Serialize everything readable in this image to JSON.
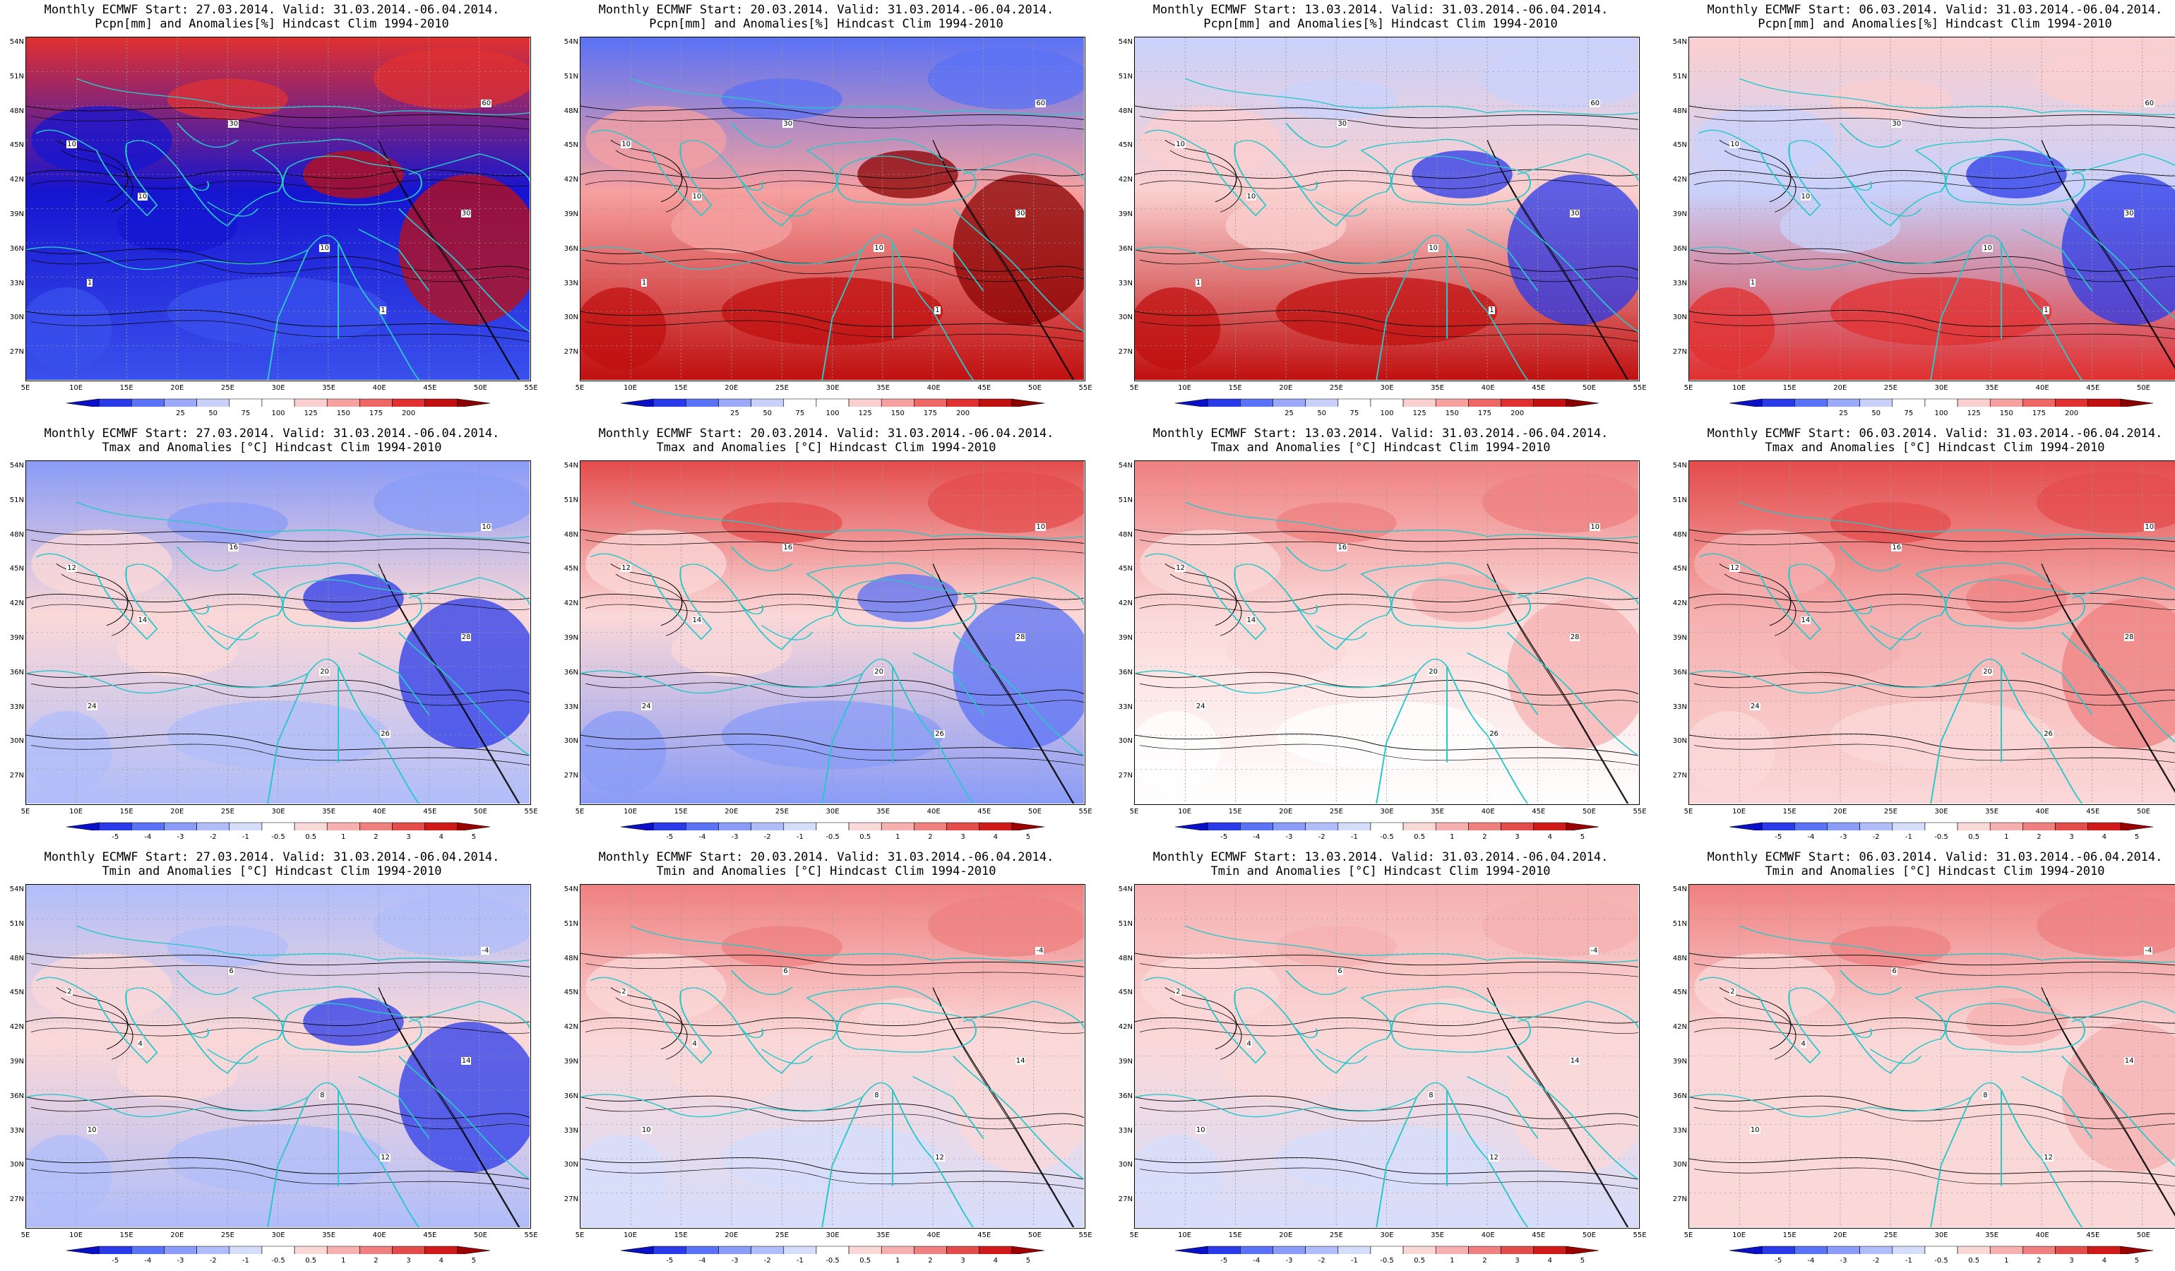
{
  "lat_labels": [
    "54N",
    "51N",
    "48N",
    "45N",
    "42N",
    "39N",
    "36N",
    "33N",
    "30N",
    "27N"
  ],
  "lon_labels": [
    "5E",
    "10E",
    "15E",
    "20E",
    "25E",
    "30E",
    "35E",
    "40E",
    "45E",
    "50E",
    "55E"
  ],
  "rows": [
    {
      "row_id": "precip",
      "title_line2": "Pcpn[mm] and Anomalies[%] Hindcast Clim 1994-2010",
      "colorbar_ticks": [
        "25",
        "50",
        "75",
        "100",
        "125",
        "150",
        "175",
        "200"
      ],
      "colorbar_colors": [
        "#0a10c8",
        "#2a3ae8",
        "#5a72f5",
        "#9aa9f8",
        "#c9d1fb",
        "#ffffff",
        "#ffffff",
        "#fbcfcf",
        "#f6a0a0",
        "#ee6666",
        "#e03030",
        "#c01010",
        "#8a0000"
      ],
      "contour_labels": [
        "10",
        "10",
        "30",
        "10",
        "1",
        "1",
        "30",
        "60"
      ]
    },
    {
      "row_id": "tmax",
      "title_line2": "Tmax and Anomalies [°C] Hindcast Clim 1994-2010",
      "colorbar_ticks": [
        "-5",
        "-4",
        "-3",
        "-2",
        "-1",
        "-0.5",
        "0.5",
        "1",
        "2",
        "3",
        "4",
        "5"
      ],
      "colorbar_colors": [
        "#0a10c8",
        "#2a3ae8",
        "#5a72f5",
        "#8a9cf7",
        "#b0bdf9",
        "#d6ddfb",
        "#ffffff",
        "#fbd8d8",
        "#f6b0b0",
        "#ef8080",
        "#e44c4c",
        "#d01a1a",
        "#9a0000"
      ],
      "contour_labels": [
        "12",
        "14",
        "16",
        "20",
        "24",
        "26",
        "28",
        "10"
      ]
    },
    {
      "row_id": "tmin",
      "title_line2": "Tmin and Anomalies [°C] Hindcast Clim 1994-2010",
      "colorbar_ticks": [
        "-5",
        "-4",
        "-3",
        "-2",
        "-1",
        "-0.5",
        "0.5",
        "1",
        "2",
        "3",
        "4",
        "5"
      ],
      "colorbar_colors": [
        "#0a10c8",
        "#2a3ae8",
        "#5a72f5",
        "#8a9cf7",
        "#b0bdf9",
        "#d6ddfb",
        "#ffffff",
        "#fbd8d8",
        "#f6b0b0",
        "#ef8080",
        "#e44c4c",
        "#d01a1a",
        "#9a0000"
      ],
      "contour_labels": [
        "2",
        "4",
        "6",
        "8",
        "10",
        "12",
        "14",
        "-4"
      ]
    }
  ],
  "columns": [
    {
      "title_line1": "Monthly ECMWF Start: 27.03.2014. Valid: 31.03.2014.-06.04.2014.",
      "start": "27.03.2014"
    },
    {
      "title_line1": "Monthly ECMWF Start: 20.03.2014. Valid: 31.03.2014.-06.04.2014.",
      "start": "20.03.2014"
    },
    {
      "title_line1": "Monthly ECMWF Start: 13.03.2014. Valid: 31.03.2014.-06.04.2014.",
      "start": "13.03.2014"
    },
    {
      "title_line1": "Monthly ECMWF Start: 06.03.2014. Valid: 31.03.2014.-06.04.2014.",
      "start": "06.03.2014"
    }
  ],
  "anomaly_fields": {
    "precip": [
      {
        "north": "#e03030",
        "center": "#1515d0",
        "south": "#3a50ec",
        "east": "#c01010"
      },
      {
        "north": "#5a72f5",
        "center": "#f6a0a0",
        "south": "#c01010",
        "east": "#8a0000"
      },
      {
        "north": "#c9d1fb",
        "center": "#fbcfcf",
        "south": "#c01010",
        "east": "#2a3ae8"
      },
      {
        "north": "#fbcfcf",
        "center": "#c9d1fb",
        "south": "#e03030",
        "east": "#2a3ae8"
      }
    ],
    "tmax": [
      {
        "north": "#8a9cf7",
        "center": "#fbd8d8",
        "south": "#b0bdf9",
        "east": "#2a3ae8"
      },
      {
        "north": "#e44c4c",
        "center": "#fbd8d8",
        "south": "#8a9cf7",
        "east": "#5a72f5"
      },
      {
        "north": "#ef8080",
        "center": "#fbd8d8",
        "south": "#ffffff",
        "east": "#f6b0b0"
      },
      {
        "north": "#e44c4c",
        "center": "#f6b0b0",
        "south": "#fbd8d8",
        "east": "#ef8080"
      }
    ],
    "tmin": [
      {
        "north": "#b0bdf9",
        "center": "#fbd8d8",
        "south": "#b0bdf9",
        "east": "#2a3ae8"
      },
      {
        "north": "#ef8080",
        "center": "#fbd8d8",
        "south": "#d6ddfb",
        "east": "#fbd8d8"
      },
      {
        "north": "#f6b0b0",
        "center": "#fbd8d8",
        "south": "#d6ddfb",
        "east": "#fbd8d8"
      },
      {
        "north": "#ef8080",
        "center": "#fbd8d8",
        "south": "#fbd8d8",
        "east": "#f6b0b0"
      }
    ]
  },
  "colors": {
    "coast": "#28c8c8",
    "contour": "#000000",
    "grid": "#9a9a9a"
  }
}
